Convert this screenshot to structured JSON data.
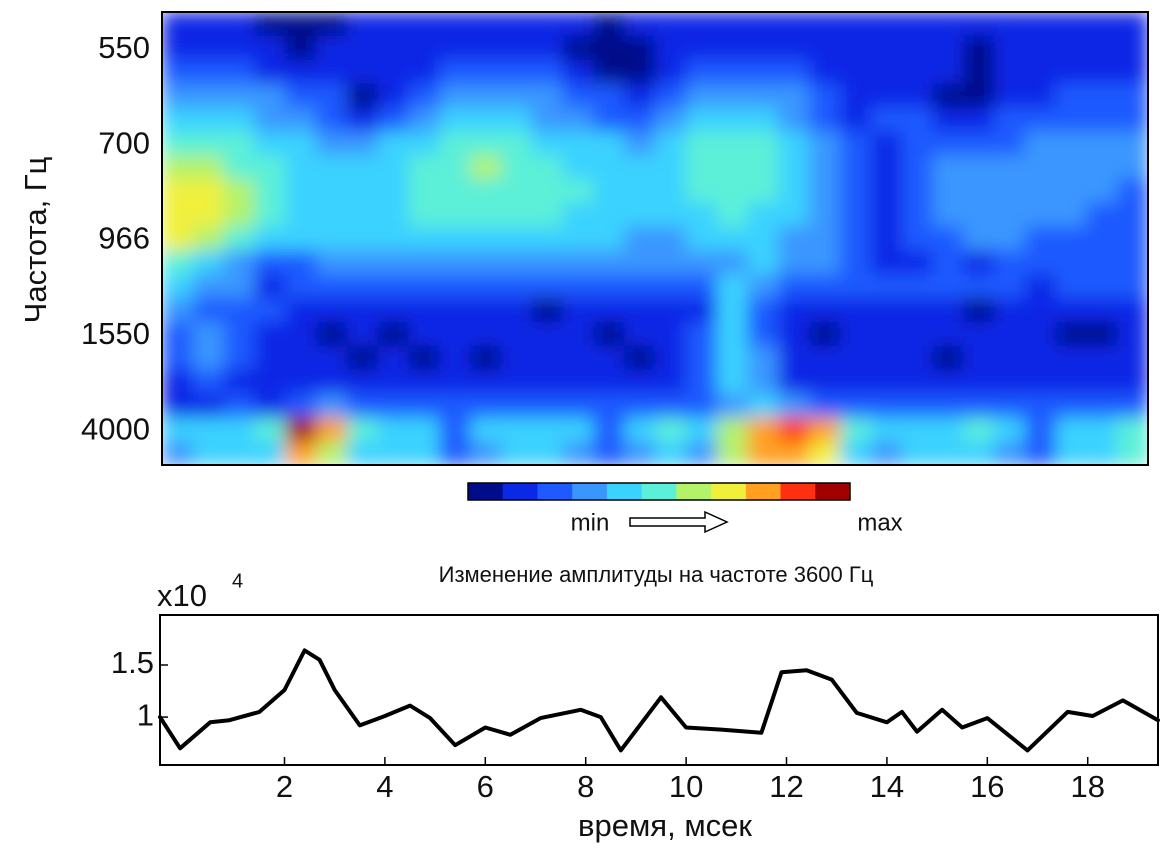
{
  "chart_data": [
    {
      "type": "heatmap",
      "y_label": "Частота, Гц",
      "y_categories": [
        null,
        "550",
        null,
        null,
        null,
        "700",
        null,
        null,
        null,
        "966",
        null,
        null,
        null,
        "1550",
        null,
        null,
        null,
        "4000",
        null
      ],
      "colormap": [
        "#000c8a",
        "#0a28e6",
        "#1e5aff",
        "#3a96ff",
        "#3ad2ff",
        "#5cf0d8",
        "#b4f26a",
        "#f0f03c",
        "#ffa020",
        "#ff3010",
        "#a00000"
      ],
      "colorbar_labels": [
        "min",
        "max"
      ],
      "z": [
        [
          1,
          1,
          1,
          0,
          0,
          0,
          1,
          1,
          1,
          1,
          1,
          1,
          1,
          1,
          0,
          1,
          1,
          1,
          1,
          1,
          1,
          1,
          1,
          1,
          1,
          1,
          1,
          1,
          1,
          1,
          1,
          1
        ],
        [
          1,
          1,
          1,
          1,
          0,
          1,
          1,
          1,
          1,
          1,
          1,
          1,
          1,
          0,
          0,
          0,
          1,
          1,
          1,
          1,
          1,
          1,
          1,
          1,
          1,
          1,
          0,
          1,
          1,
          1,
          1,
          1
        ],
        [
          2,
          2,
          2,
          1,
          1,
          1,
          1,
          1,
          1,
          2,
          2,
          2,
          2,
          1,
          0,
          0,
          1,
          2,
          2,
          2,
          2,
          1,
          1,
          1,
          1,
          1,
          0,
          1,
          1,
          1,
          1,
          1
        ],
        [
          3,
          3,
          3,
          3,
          2,
          2,
          0,
          1,
          2,
          3,
          3,
          3,
          3,
          2,
          2,
          1,
          2,
          3,
          3,
          3,
          3,
          2,
          1,
          1,
          1,
          0,
          0,
          1,
          1,
          2,
          2,
          2
        ],
        [
          4,
          4,
          4,
          3,
          3,
          2,
          1,
          2,
          3,
          4,
          4,
          4,
          3,
          3,
          2,
          2,
          3,
          4,
          4,
          4,
          3,
          2,
          1,
          2,
          2,
          1,
          1,
          2,
          2,
          2,
          2,
          2
        ],
        [
          5,
          5,
          5,
          4,
          4,
          3,
          3,
          4,
          4,
          5,
          5,
          5,
          4,
          4,
          4,
          3,
          4,
          5,
          5,
          5,
          4,
          3,
          2,
          1,
          2,
          2,
          2,
          2,
          3,
          3,
          3,
          3
        ],
        [
          6,
          6,
          5,
          5,
          4,
          4,
          4,
          4,
          5,
          5,
          6,
          5,
          5,
          4,
          4,
          4,
          4,
          5,
          5,
          5,
          4,
          3,
          2,
          1,
          2,
          3,
          3,
          3,
          3,
          3,
          3,
          3
        ],
        [
          7,
          7,
          6,
          5,
          4,
          4,
          4,
          4,
          5,
          5,
          5,
          5,
          5,
          5,
          4,
          4,
          4,
          5,
          5,
          5,
          4,
          3,
          2,
          1,
          2,
          3,
          3,
          3,
          3,
          3,
          3,
          2
        ],
        [
          7,
          7,
          6,
          5,
          4,
          4,
          4,
          4,
          5,
          5,
          5,
          5,
          5,
          4,
          4,
          4,
          4,
          4,
          5,
          4,
          4,
          3,
          2,
          1,
          2,
          3,
          3,
          3,
          3,
          3,
          2,
          2
        ],
        [
          7,
          6,
          5,
          4,
          4,
          4,
          4,
          4,
          4,
          4,
          4,
          4,
          4,
          4,
          4,
          3,
          3,
          4,
          4,
          4,
          3,
          3,
          2,
          1,
          2,
          2,
          3,
          3,
          2,
          2,
          2,
          2
        ],
        [
          5,
          4,
          3,
          2,
          2,
          3,
          3,
          3,
          3,
          3,
          3,
          3,
          3,
          3,
          3,
          3,
          3,
          3,
          3,
          4,
          3,
          3,
          2,
          1,
          1,
          2,
          1,
          2,
          2,
          2,
          2,
          2
        ],
        [
          4,
          3,
          3,
          1,
          2,
          2,
          2,
          2,
          2,
          2,
          2,
          2,
          2,
          2,
          2,
          2,
          2,
          2,
          4,
          3,
          2,
          2,
          2,
          2,
          2,
          2,
          2,
          2,
          1,
          2,
          2,
          2
        ],
        [
          3,
          2,
          2,
          2,
          1,
          1,
          1,
          1,
          1,
          1,
          1,
          1,
          0,
          1,
          1,
          1,
          1,
          1,
          4,
          2,
          1,
          1,
          1,
          1,
          1,
          1,
          0,
          1,
          1,
          1,
          1,
          1
        ],
        [
          2,
          3,
          2,
          1,
          1,
          0,
          1,
          0,
          1,
          1,
          1,
          1,
          1,
          1,
          0,
          1,
          1,
          2,
          4,
          2,
          1,
          0,
          1,
          1,
          1,
          1,
          1,
          1,
          1,
          0,
          0,
          1
        ],
        [
          2,
          3,
          2,
          1,
          1,
          1,
          0,
          1,
          0,
          1,
          0,
          1,
          1,
          1,
          1,
          0,
          1,
          2,
          4,
          3,
          1,
          1,
          1,
          1,
          1,
          0,
          1,
          1,
          1,
          1,
          1,
          1
        ],
        [
          1,
          2,
          1,
          1,
          1,
          1,
          1,
          1,
          1,
          1,
          1,
          1,
          1,
          1,
          1,
          1,
          1,
          2,
          4,
          3,
          1,
          1,
          1,
          1,
          1,
          1,
          1,
          1,
          1,
          1,
          1,
          1
        ],
        [
          1,
          1,
          2,
          1,
          2,
          3,
          2,
          2,
          2,
          2,
          2,
          2,
          2,
          2,
          2,
          2,
          2,
          2,
          3,
          4,
          3,
          2,
          2,
          2,
          2,
          2,
          2,
          2,
          2,
          2,
          2,
          2
        ],
        [
          4,
          4,
          4,
          5,
          10,
          8,
          5,
          4,
          4,
          2,
          4,
          4,
          4,
          4,
          2,
          4,
          5,
          4,
          6,
          8,
          9,
          8,
          5,
          4,
          4,
          4,
          5,
          4,
          2,
          4,
          4,
          5
        ],
        [
          3,
          4,
          4,
          4,
          8,
          6,
          4,
          4,
          4,
          2,
          3,
          4,
          4,
          3,
          2,
          3,
          4,
          3,
          6,
          8,
          8,
          7,
          4,
          3,
          4,
          4,
          4,
          3,
          2,
          4,
          4,
          5
        ]
      ]
    },
    {
      "type": "line",
      "title": "Изменение амплитуды на частоте 3600 Гц",
      "y_multiplier": "x10",
      "y_multiplier_exp": "4",
      "x_label": "время, мсек",
      "color": "#000000",
      "x": [
        -0.48,
        -0.08,
        0.52,
        0.9,
        1.5,
        2.0,
        2.4,
        2.7,
        3.0,
        3.5,
        4.0,
        4.5,
        4.9,
        5.4,
        6.0,
        6.5,
        7.1,
        7.9,
        8.3,
        8.7,
        9.5,
        10.0,
        10.7,
        11.5,
        11.9,
        12.4,
        12.9,
        13.4,
        14.0,
        14.3,
        14.6,
        15.1,
        15.5,
        16.0,
        16.8,
        17.6,
        18.1,
        18.7,
        19.4
      ],
      "values": [
        1.0,
        0.7,
        0.95,
        0.97,
        1.05,
        1.26,
        1.64,
        1.55,
        1.26,
        0.92,
        1.01,
        1.11,
        0.99,
        0.73,
        0.9,
        0.83,
        0.99,
        1.07,
        1.0,
        0.68,
        1.19,
        0.9,
        0.88,
        0.85,
        1.43,
        1.45,
        1.36,
        1.04,
        0.95,
        1.05,
        0.86,
        1.07,
        0.9,
        0.99,
        0.68,
        1.05,
        1.01,
        1.16,
        0.97
      ],
      "xlim": [
        -0.48,
        19.4
      ],
      "ylim": [
        0.54,
        1.98
      ],
      "xticks": [
        2,
        4,
        6,
        8,
        10,
        12,
        14,
        16,
        18
      ],
      "yticks": [
        1,
        1.5
      ]
    }
  ]
}
